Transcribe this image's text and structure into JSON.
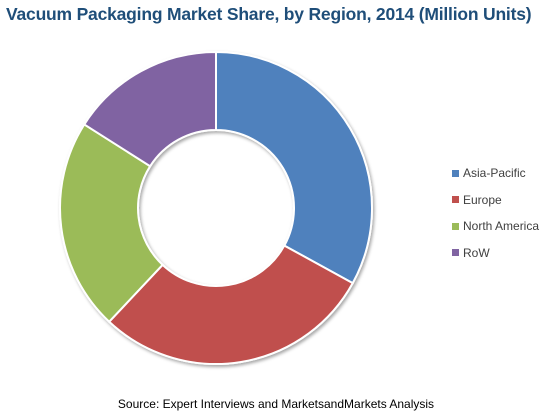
{
  "title": "Vacuum Packaging Market Share, by Region, 2014 (Million Units)",
  "source": "Source: Expert Interviews and MarketsandMarkets Analysis",
  "chart_data": {
    "type": "pie",
    "variant": "donut",
    "title": "Vacuum Packaging Market Share, by Region, 2014 (Million Units)",
    "categories": [
      "Asia-Pacific",
      "Europe",
      "North America",
      "RoW"
    ],
    "values": [
      33,
      29,
      22,
      16
    ],
    "colors": [
      "#4f81bd",
      "#c0504d",
      "#9bbb59",
      "#8064a2"
    ],
    "legend": "right",
    "start_angle": "12 o'clock",
    "direction": "clockwise"
  }
}
